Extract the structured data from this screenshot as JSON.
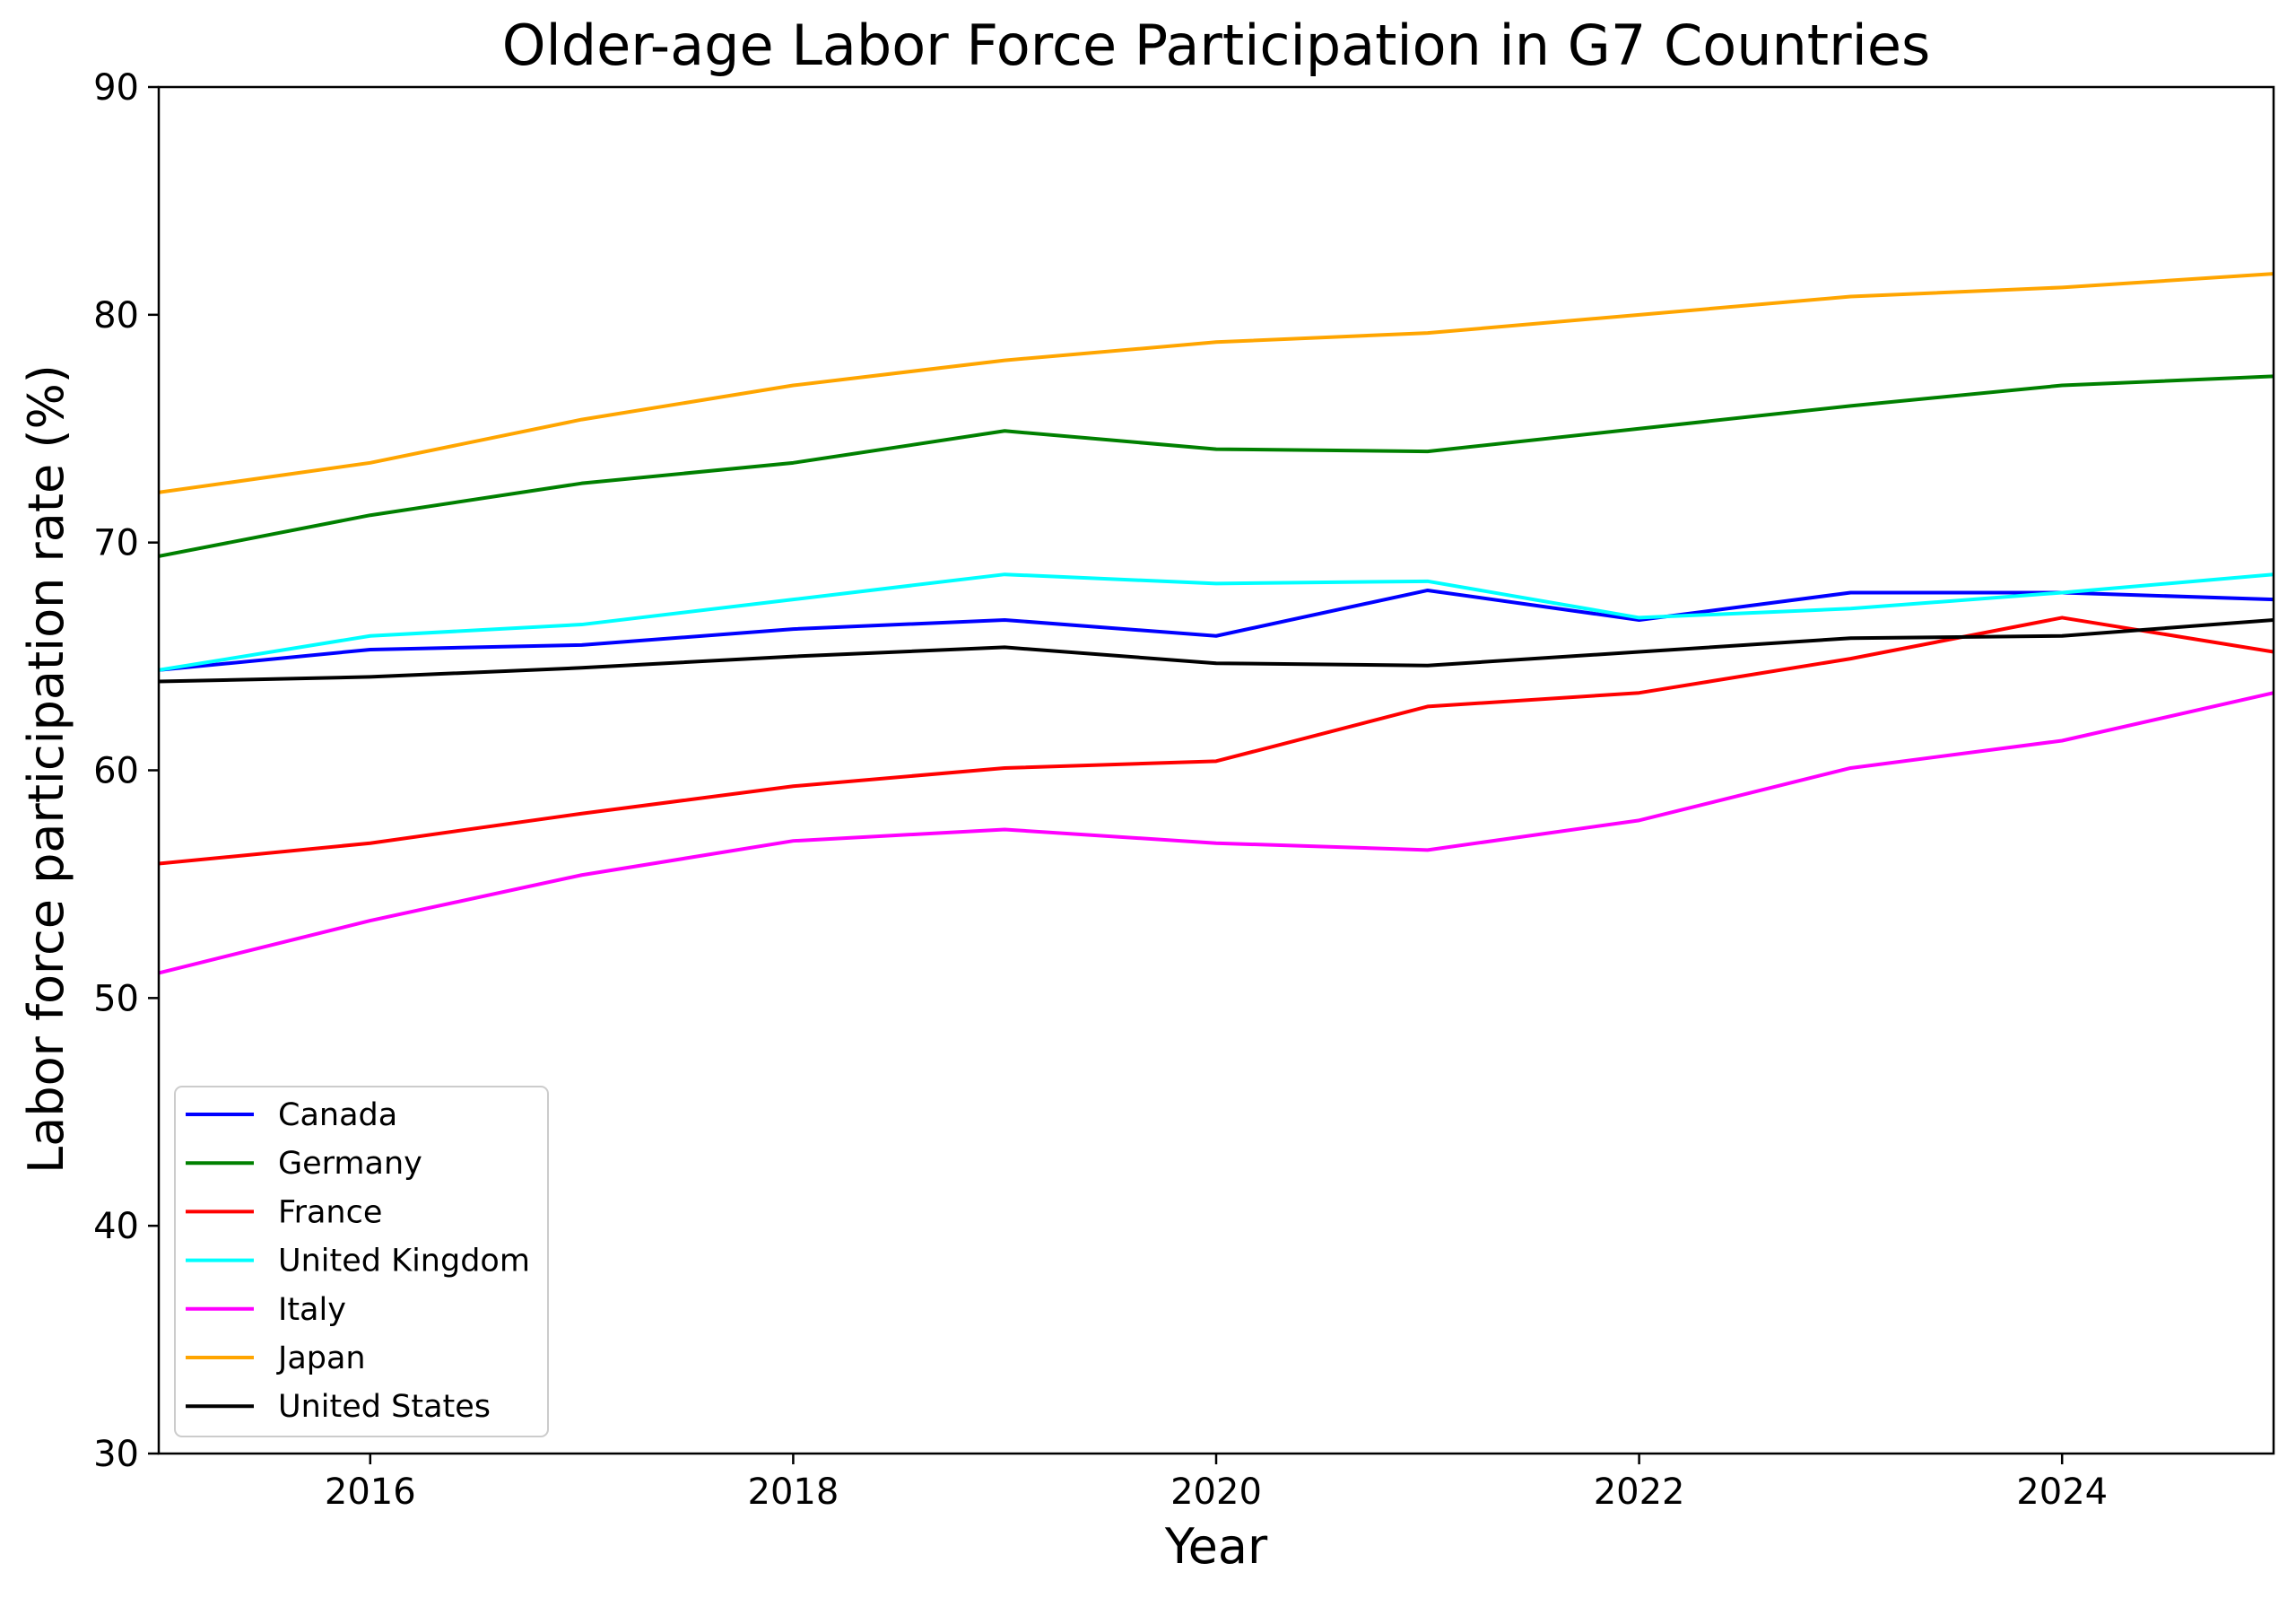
{
  "chart_data": {
    "type": "line",
    "title": "Older-age Labor Force Participation in G7 Countries",
    "xlabel": "Year",
    "ylabel": "Labor force participation rate (%)",
    "xlim": [
      2015,
      2025
    ],
    "ylim": [
      30,
      90
    ],
    "x_ticks": [
      2016,
      2018,
      2020,
      2022,
      2024
    ],
    "y_ticks": [
      30,
      40,
      50,
      60,
      70,
      80,
      90
    ],
    "grid": false,
    "legend_position": "lower-left",
    "x": [
      2015,
      2016,
      2017,
      2018,
      2019,
      2020,
      2021,
      2022,
      2023,
      2024,
      2025
    ],
    "series": [
      {
        "name": "Canada",
        "color": "#0000ff",
        "values": [
          64.4,
          65.3,
          65.5,
          66.2,
          66.6,
          65.9,
          67.9,
          66.6,
          67.8,
          67.8,
          67.5
        ]
      },
      {
        "name": "Germany",
        "color": "#008000",
        "values": [
          69.4,
          71.2,
          72.6,
          73.5,
          74.9,
          74.1,
          74.0,
          75.0,
          76.0,
          76.9,
          77.3
        ]
      },
      {
        "name": "France",
        "color": "#ff0000",
        "values": [
          55.9,
          56.8,
          58.1,
          59.3,
          60.1,
          60.4,
          62.8,
          63.4,
          64.9,
          66.7,
          65.2
        ]
      },
      {
        "name": "United Kingdom",
        "color": "#00ffff",
        "values": [
          64.4,
          65.9,
          66.4,
          67.5,
          68.6,
          68.2,
          68.3,
          66.7,
          67.1,
          67.8,
          68.6
        ]
      },
      {
        "name": "Italy",
        "color": "#ff00ff",
        "values": [
          51.1,
          53.4,
          55.4,
          56.9,
          57.4,
          56.8,
          56.5,
          57.8,
          60.1,
          61.3,
          63.4
        ]
      },
      {
        "name": "Japan",
        "color": "#ffa500",
        "values": [
          72.2,
          73.5,
          75.4,
          76.9,
          78.0,
          78.8,
          79.2,
          80.0,
          80.8,
          81.2,
          81.8
        ]
      },
      {
        "name": "United States",
        "color": "#000000",
        "values": [
          63.9,
          64.1,
          64.5,
          65.0,
          65.4,
          64.7,
          64.6,
          65.2,
          65.8,
          65.9,
          66.6
        ]
      }
    ]
  }
}
